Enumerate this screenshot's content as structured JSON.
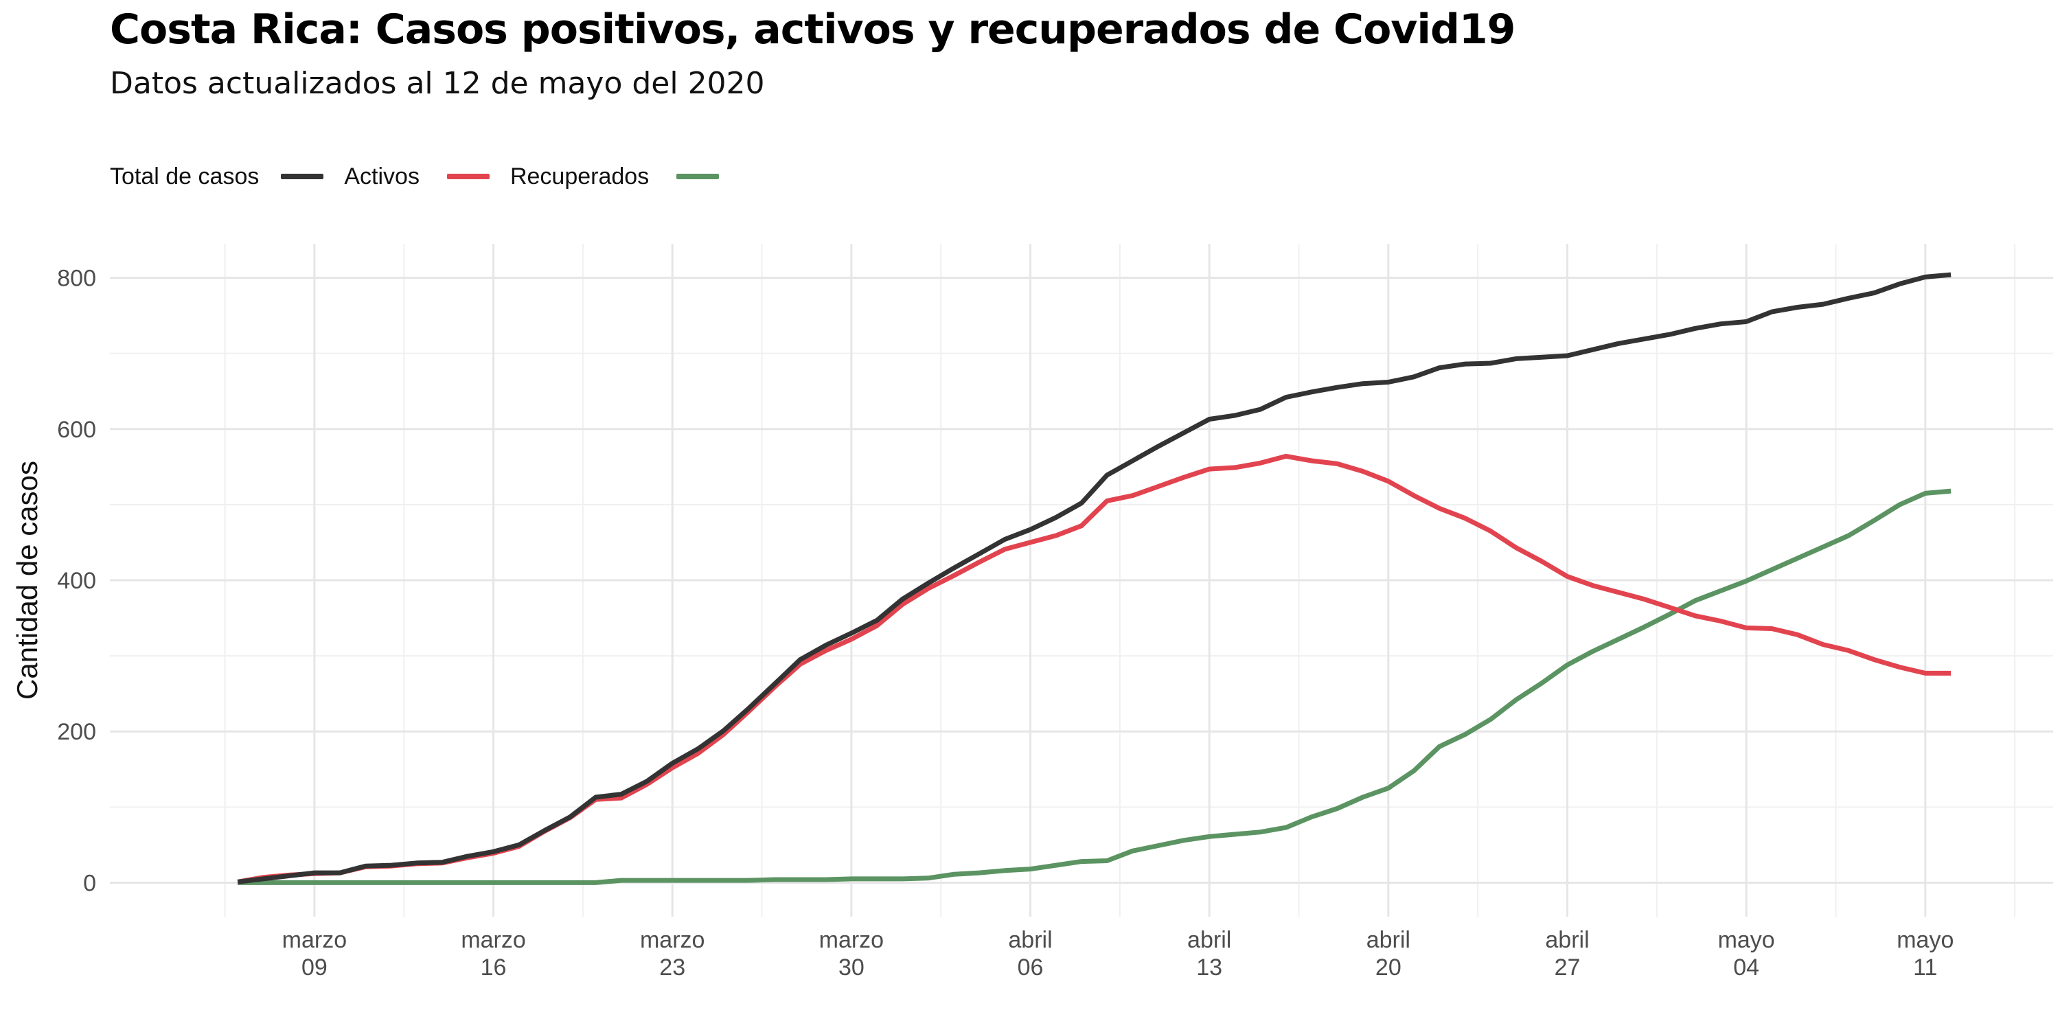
{
  "header": {
    "title": "Costa Rica: Casos positivos, activos y recuperados de Covid19",
    "subtitle": "Datos actualizados al 12 de mayo del 2020"
  },
  "chart_data": {
    "type": "line",
    "title": "Costa Rica: Casos positivos, activos y recuperados de Covid19",
    "subtitle": "Datos actualizados al 12 de mayo del 2020",
    "xlabel": "",
    "ylabel": "Cantidad de casos",
    "x_start": "2020-03-06",
    "x_end": "2020-05-12",
    "xlim": [
      "2020-03-01",
      "2020-05-16"
    ],
    "ylim": [
      -45,
      845
    ],
    "yticks": [
      0,
      200,
      400,
      600,
      800
    ],
    "xticks": [
      {
        "date": "2020-03-09",
        "month": "marzo",
        "day": "09"
      },
      {
        "date": "2020-03-16",
        "month": "marzo",
        "day": "16"
      },
      {
        "date": "2020-03-23",
        "month": "marzo",
        "day": "23"
      },
      {
        "date": "2020-03-30",
        "month": "marzo",
        "day": "30"
      },
      {
        "date": "2020-04-06",
        "month": "abril",
        "day": "06"
      },
      {
        "date": "2020-04-13",
        "month": "abril",
        "day": "13"
      },
      {
        "date": "2020-04-20",
        "month": "abril",
        "day": "20"
      },
      {
        "date": "2020-04-27",
        "month": "abril",
        "day": "27"
      },
      {
        "date": "2020-05-04",
        "month": "mayo",
        "day": "04"
      },
      {
        "date": "2020-05-11",
        "month": "mayo",
        "day": "11"
      }
    ],
    "grid": true,
    "legend": {
      "title": "Total de casos",
      "position": "top-left"
    },
    "series": [
      {
        "name": "Total de casos",
        "color": "#333333",
        "values": [
          1,
          5,
          9,
          13,
          13,
          22,
          23,
          26,
          27,
          35,
          41,
          50,
          69,
          87,
          113,
          117,
          134,
          158,
          177,
          201,
          231,
          263,
          295,
          314,
          330,
          347,
          375,
          396,
          416,
          435,
          454,
          467,
          483,
          502,
          539,
          558,
          577,
          595,
          613,
          618,
          626,
          642,
          649,
          655,
          660,
          662,
          669,
          681,
          686,
          687,
          693,
          695,
          697,
          705,
          713,
          719,
          725,
          733,
          739,
          742,
          755,
          761,
          765,
          773,
          780,
          792,
          801,
          804
        ]
      },
      {
        "name": "Activos",
        "color": "#e2444f",
        "values": [
          1,
          7,
          10,
          12,
          13,
          21,
          22,
          25,
          26,
          33,
          39,
          48,
          68,
          86,
          110,
          112,
          130,
          152,
          171,
          196,
          227,
          259,
          289,
          307,
          322,
          340,
          368,
          389,
          406,
          424,
          441,
          450,
          459,
          472,
          505,
          512,
          524,
          536,
          547,
          549,
          555,
          564,
          558,
          554,
          544,
          531,
          512,
          495,
          482,
          465,
          443,
          425,
          405,
          393,
          384,
          375,
          364,
          353,
          346,
          337,
          336,
          328,
          315,
          307,
          295,
          285,
          277,
          277
        ]
      },
      {
        "name": "Recuperados",
        "color": "#5b9462",
        "values": [
          0,
          0,
          0,
          0,
          0,
          0,
          0,
          0,
          0,
          0,
          0,
          0,
          0,
          0,
          0,
          3,
          3,
          3,
          3,
          3,
          3,
          4,
          4,
          4,
          5,
          5,
          5,
          6,
          11,
          13,
          16,
          18,
          23,
          28,
          29,
          42,
          49,
          56,
          61,
          64,
          67,
          73,
          87,
          98,
          113,
          125,
          148,
          180,
          196,
          216,
          242,
          264,
          288,
          306,
          322,
          338,
          355,
          373,
          386,
          399,
          414,
          429,
          444,
          459,
          479,
          500,
          515,
          518
        ]
      }
    ]
  }
}
